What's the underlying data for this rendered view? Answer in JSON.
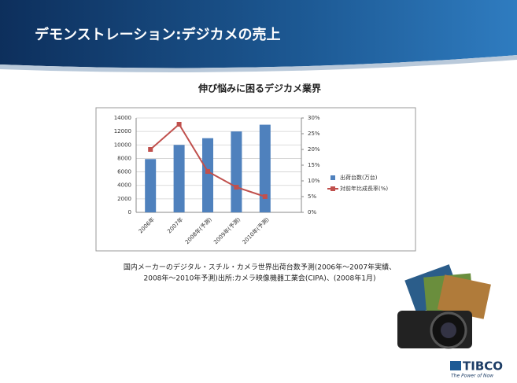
{
  "slide": {
    "title": "デモンストレーション:デジカメの売上",
    "caption": [
      "国内メーカーのデジタル・スチル・カメラ世界出荷台数予測(2006年〜2007年実績、",
      "2008年〜2010年予測)出所:カメラ映像機器工業会(CIPA)、(2008年1月)"
    ],
    "logo": "TIBCO",
    "tagline": "The Power of Now"
  },
  "chart_data": {
    "type": "bar",
    "title": "伸び悩みに困るデジカメ業界",
    "categories": [
      "2006年",
      "2007年",
      "2008年(予測)",
      "2009年(予測)",
      "2010年(予測)"
    ],
    "series": [
      {
        "name": "出荷台数(万台)",
        "type": "bar",
        "color": "#4f81bd",
        "values": [
          7900,
          10000,
          11000,
          12000,
          13000
        ]
      },
      {
        "name": "対前年比成長率(%)",
        "type": "line",
        "axis": "y2",
        "color": "#c0504d",
        "values": [
          20,
          28,
          13,
          8,
          5
        ]
      }
    ],
    "ylim": [
      0,
      14000
    ],
    "yticks": [
      0,
      2000,
      4000,
      6000,
      8000,
      10000,
      12000,
      14000
    ],
    "y2lim": [
      0,
      30
    ],
    "y2ticks": [
      {
        "value": 0,
        "label": "0%"
      },
      {
        "value": 5,
        "label": "5%"
      },
      {
        "value": 10,
        "label": "10%"
      },
      {
        "value": 15,
        "label": "15%"
      },
      {
        "value": 20,
        "label": "20%"
      },
      {
        "value": 25,
        "label": "25%"
      },
      {
        "value": 30,
        "label": "30%"
      }
    ],
    "grid": true,
    "legend": "right"
  }
}
